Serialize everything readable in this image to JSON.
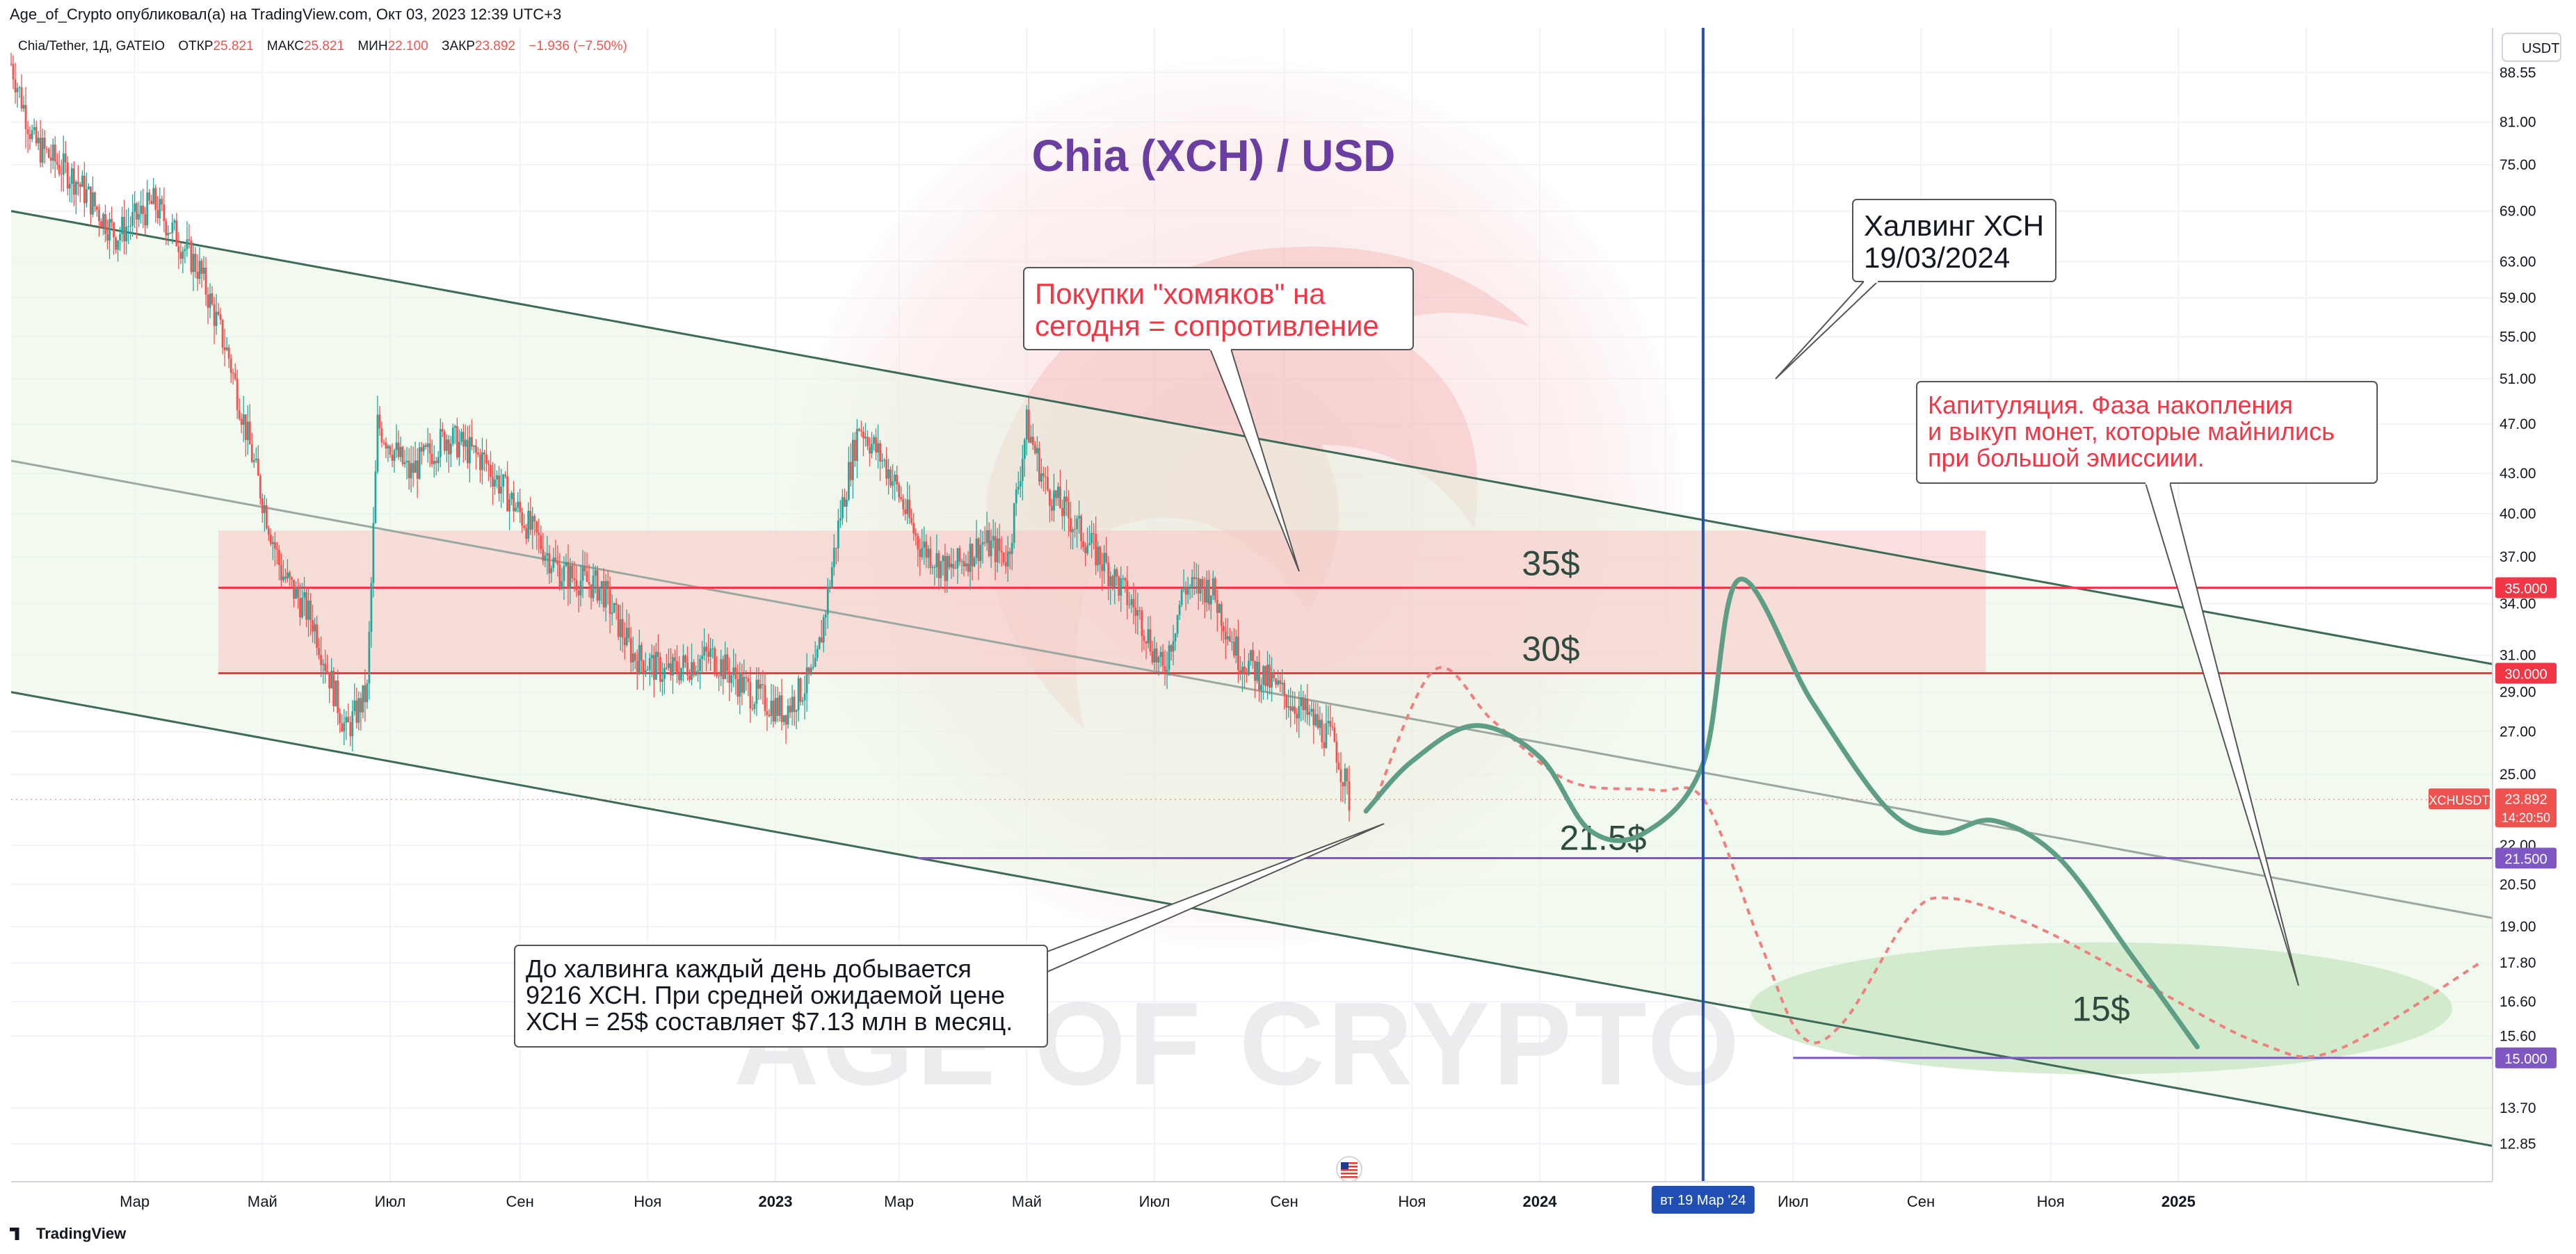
{
  "header": {
    "text": "Age_of_Crypto опубликовал(а) на TradingView.com, Окт 03, 2023 12:39 UTC+3"
  },
  "symbol_info": {
    "name": "Chia/Tether, 1Д, GATEIO",
    "open_label": "ОТКР",
    "open": "25.821",
    "high_label": "МАКС",
    "high": "25.821",
    "low_label": "МИН",
    "low": "22.100",
    "close_label": "ЗАКР",
    "close": "23.892",
    "change": "−1.936 (−7.50%)"
  },
  "footer": {
    "brand": "TradingView"
  },
  "colors": {
    "title": "#6a3ea1",
    "resistance": "#f23645",
    "support": "#7e57c2",
    "channel": "#3e6b57",
    "halving_line": "#1f4fb5",
    "bullish_path": "#5f9e86",
    "bearish_path": "#f08080",
    "up_candle": "#26a69a",
    "down_candle": "#ef5350"
  },
  "chart_data": {
    "type": "candlestick",
    "title": "Chia (XCH) / USD",
    "currency": "USDT",
    "scale": "log",
    "ylim": [
      12.0,
      96.0
    ],
    "xlim": [
      "2022-01-01",
      "2025-03-31"
    ],
    "x_ticks": [
      "Мар",
      "Май",
      "Июл",
      "Сен",
      "Ноя",
      "2023",
      "Мар",
      "Май",
      "Июл",
      "Сен",
      "Ноя",
      "2024",
      "Май",
      "Июл",
      "Сен",
      "Ноя",
      "2025"
    ],
    "y_ticks": [
      "88.55",
      "81.00",
      "75.00",
      "69.00",
      "63.00",
      "59.00",
      "55.00",
      "51.00",
      "47.00",
      "43.00",
      "40.00",
      "37.00",
      "34.00",
      "31.00",
      "29.00",
      "27.00",
      "25.00",
      "22.00",
      "20.50",
      "19.00",
      "17.80",
      "16.60",
      "15.60",
      "13.70",
      "12.85"
    ],
    "price_anchors": [
      [
        "2022-01-01",
        90
      ],
      [
        "2022-01-12",
        78
      ],
      [
        "2022-02-01",
        73
      ],
      [
        "2022-02-20",
        66
      ],
      [
        "2022-03-10",
        70
      ],
      [
        "2022-04-01",
        62
      ],
      [
        "2022-04-15",
        53
      ],
      [
        "2022-04-28",
        43
      ],
      [
        "2022-05-10",
        36
      ],
      [
        "2022-05-25",
        33
      ],
      [
        "2022-06-10",
        27
      ],
      [
        "2022-06-20",
        29
      ],
      [
        "2022-06-25",
        47
      ],
      [
        "2022-07-10",
        43
      ],
      [
        "2022-07-28",
        46
      ],
      [
        "2022-08-15",
        44
      ],
      [
        "2022-09-01",
        40
      ],
      [
        "2022-09-20",
        36
      ],
      [
        "2022-10-10",
        35
      ],
      [
        "2022-10-25",
        31
      ],
      [
        "2022-11-10",
        30
      ],
      [
        "2022-12-01",
        31
      ],
      [
        "2022-12-20",
        29
      ],
      [
        "2023-01-05",
        28
      ],
      [
        "2023-01-20",
        30
      ],
      [
        "2023-02-01",
        40
      ],
      [
        "2023-02-10",
        47
      ],
      [
        "2023-02-25",
        43
      ],
      [
        "2023-03-10",
        38
      ],
      [
        "2023-03-25",
        36
      ],
      [
        "2023-04-10",
        38
      ],
      [
        "2023-04-22",
        37
      ],
      [
        "2023-05-01",
        47
      ],
      [
        "2023-05-10",
        42
      ],
      [
        "2023-05-25",
        39
      ],
      [
        "2023-06-10",
        36
      ],
      [
        "2023-06-25",
        33
      ],
      [
        "2023-07-05",
        30
      ],
      [
        "2023-07-15",
        35
      ],
      [
        "2023-07-28",
        35
      ],
      [
        "2023-08-10",
        31
      ],
      [
        "2023-08-25",
        29.5
      ],
      [
        "2023-09-10",
        28
      ],
      [
        "2023-09-25",
        26.5
      ],
      [
        "2023-10-02",
        23.9
      ]
    ],
    "series": [
      {
        "name": "XCHUSDT",
        "last": "23.892",
        "countdown": "14:20:50"
      }
    ],
    "channel_lines": [
      {
        "role": "upper",
        "from": [
          "2022-01-01",
          69
        ],
        "to": [
          "2025-03-31",
          30.5
        ]
      },
      {
        "role": "middle",
        "from": [
          "2022-01-01",
          44
        ],
        "to": [
          "2025-03-31",
          19.3
        ]
      },
      {
        "role": "lower",
        "from": [
          "2022-01-01",
          29
        ],
        "to": [
          "2025-03-31",
          12.8
        ]
      }
    ],
    "levels": [
      {
        "price": 35.0,
        "label": "35$",
        "axis_label": "35.000",
        "color": "#f23645",
        "from": "2022-04-10"
      },
      {
        "price": 30.0,
        "label": "30$",
        "axis_label": "30.000",
        "color": "#f23645",
        "from": "2022-04-10"
      },
      {
        "price": 21.5,
        "label": "21.5$",
        "axis_label": "21.500",
        "color": "#7e57c2",
        "from": "2023-03-10"
      },
      {
        "price": 15.0,
        "label": "15$",
        "axis_label": "15.000",
        "color": "#7e57c2",
        "from": "2024-05-01"
      }
    ],
    "resistance_zone": {
      "from": "2022-04-10",
      "to": "2024-08-01",
      "low": 30.0,
      "high": 38.8
    },
    "accumulation_zone": {
      "center": [
        "2024-09-25",
        16.4
      ],
      "label": "15$"
    },
    "halving": {
      "date": "2024-03-19",
      "axis_label": "вт 19 Мар '24"
    },
    "projection_bullish": [
      [
        "2023-10-10",
        23.4
      ],
      [
        "2023-11-01",
        25.6
      ],
      [
        "2023-12-01",
        27.3
      ],
      [
        "2024-01-01",
        25.8
      ],
      [
        "2024-01-25",
        22.6
      ],
      [
        "2024-02-20",
        22.5
      ],
      [
        "2024-03-19",
        25.5
      ],
      [
        "2024-04-05",
        35.5
      ],
      [
        "2024-05-10",
        28.5
      ],
      [
        "2024-06-15",
        23.5
      ],
      [
        "2024-07-10",
        22.5
      ],
      [
        "2024-08-05",
        23.0
      ],
      [
        "2024-09-05",
        21.5
      ],
      [
        "2024-10-10",
        18.0
      ],
      [
        "2024-11-10",
        15.3
      ]
    ],
    "projection_bearish": [
      [
        "2023-10-15",
        24.0
      ],
      [
        "2023-11-12",
        30.2
      ],
      [
        "2023-12-10",
        27.5
      ],
      [
        "2024-01-15",
        24.7
      ],
      [
        "2024-02-25",
        24.3
      ],
      [
        "2024-03-20",
        23.8
      ],
      [
        "2024-04-15",
        18.5
      ],
      [
        "2024-05-05",
        15.6
      ],
      [
        "2024-05-25",
        16.0
      ],
      [
        "2024-06-25",
        19.3
      ],
      [
        "2024-07-15",
        20.0
      ],
      [
        "2024-08-25",
        19.0
      ],
      [
        "2024-10-20",
        17.0
      ],
      [
        "2024-12-10",
        15.4
      ],
      [
        "2025-01-15",
        15.2
      ],
      [
        "2025-03-25",
        17.8
      ]
    ],
    "annotations": [
      {
        "id": "hamsters",
        "lines": [
          "Покупки \"хомяков\" на",
          "сегодня = сопротивление"
        ],
        "color": "#f23645"
      },
      {
        "id": "halving",
        "lines": [
          "Халвинг ХСН",
          "19/03/2024"
        ],
        "color": "#131722"
      },
      {
        "id": "capitulation",
        "lines": [
          "Капитуляция. Фаза накопления",
          "и выкуп монет, которые майнились",
          "при большой эмиссиии."
        ],
        "color": "#f23645"
      },
      {
        "id": "mining",
        "lines": [
          "До халвинга каждый день добывается",
          "9216 ХСН. При средней ожидаемой цене",
          "ХСН = 25$ составляет $7.13 млн в месяц."
        ],
        "color": "#131722"
      }
    ],
    "watermark": "AGE OF CRYPTO"
  }
}
